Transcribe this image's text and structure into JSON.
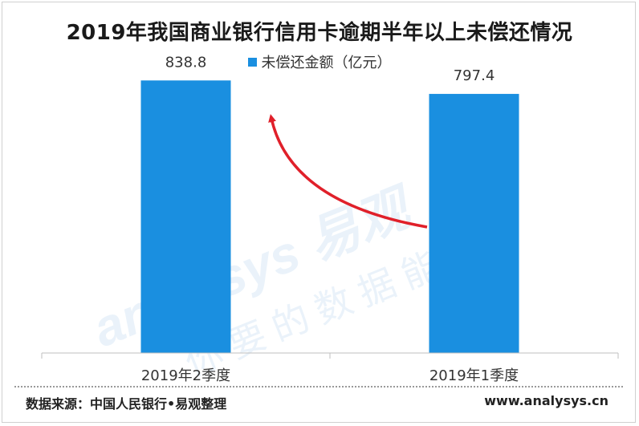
{
  "chart_data": {
    "type": "bar",
    "title": "2019年我国商业银行信用卡逾期半年以上未偿还情况",
    "categories": [
      "2019年2季度",
      "2019年1季度"
    ],
    "series": [
      {
        "name": "未偿还金额（亿元）",
        "values": [
          838.8,
          797.4
        ],
        "color": "#1a8fe0"
      }
    ],
    "data_labels": [
      "838.8",
      "797.4"
    ],
    "ylim": [
      0,
      1000
    ],
    "grid": false,
    "legend_position": "top-center",
    "annotation": "red arrow from 2019年1季度 bar up to 2019年2季度 bar",
    "annotation_color": "#e0202a"
  },
  "watermark": {
    "brand": "analysys 易观",
    "slogan": "你要的数据能力"
  },
  "footer": {
    "source": "数据来源：中国人民银行•易观整理",
    "url": "www.analysys.cn"
  }
}
